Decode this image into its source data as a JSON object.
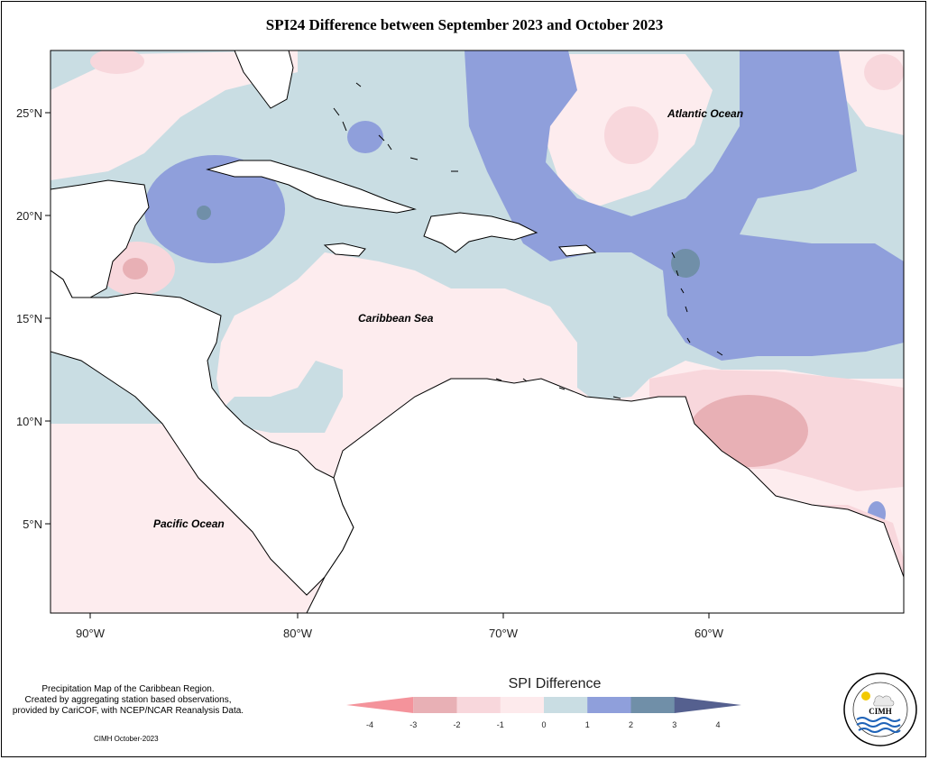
{
  "title": "SPI24 Difference between September 2023 and October 2023",
  "map": {
    "lat_ticks": [
      "25°N",
      "20°N",
      "15°N",
      "10°N",
      "5°N"
    ],
    "lon_ticks": [
      "90°W",
      "80°W",
      "70°W",
      "60°W"
    ],
    "labels": {
      "atlantic": "Atlantic Ocean",
      "caribbean": "Caribbean Sea",
      "pacific": "Pacific Ocean"
    }
  },
  "legend": {
    "title": "SPI Difference",
    "ticks": [
      "-4",
      "-3",
      "-2",
      "-1",
      "0",
      "1",
      "2",
      "3",
      "4"
    ],
    "colors": [
      "#f4939b",
      "#e8b0b5",
      "#f8d7dc",
      "#fdeaec",
      "#c9dde3",
      "#8f9fdb",
      "#708fa8",
      "#55608f"
    ]
  },
  "credits": {
    "line1": "Precipitation Map of the Caribbean Region.",
    "line2": "Created by aggregating station based observations,",
    "line3": "provided by CariCOF, with NCEP/NCAR Reanalysis Data.",
    "stamp": "CIMH October-2023"
  },
  "logo": {
    "text": "CIMH",
    "ring_text": "Caribbean Institute for Meteorology and Hydrology"
  }
}
